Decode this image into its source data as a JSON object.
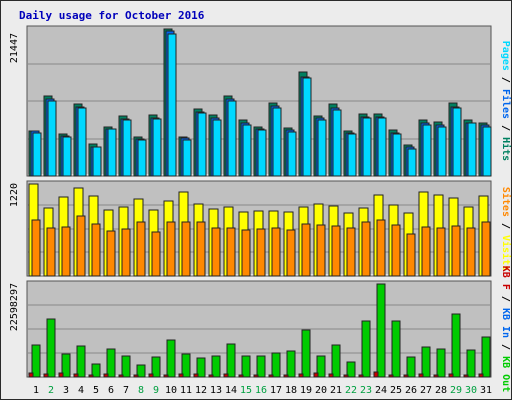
{
  "colors": {
    "background": "#ececec",
    "panel": "#c0c0c0",
    "pages": "#00d8ff",
    "files": "#0066ee",
    "hits": "#008060",
    "visits": "#ffff00",
    "sites": "#ff8800",
    "kb_f": "#c80000",
    "kb_in": "#0066ee",
    "kb_out": "#00cc00"
  },
  "chart_data": [
    {
      "type": "bar",
      "title": "Daily usage for October 2016",
      "panel": "hits",
      "ymax_label": "21447",
      "ylim": [
        0,
        21447
      ],
      "right_labels": [
        "Pages",
        "Files",
        "Hits"
      ],
      "grid": true,
      "categories": [
        "1",
        "2",
        "3",
        "4",
        "5",
        "6",
        "7",
        "8",
        "9",
        "10",
        "11",
        "12",
        "13",
        "14",
        "15",
        "16",
        "17",
        "18",
        "19",
        "20",
        "21",
        "22",
        "23",
        "24",
        "25",
        "26",
        "27",
        "28",
        "29",
        "30",
        "31"
      ],
      "weekend_days": [
        "2",
        "8",
        "9",
        "15",
        "16",
        "22",
        "23",
        "29",
        "30"
      ],
      "series": [
        {
          "name": "Hits",
          "values": [
            6600,
            11600,
            6200,
            10500,
            4600,
            7200,
            8700,
            5700,
            8900,
            21447,
            5700,
            9800,
            8900,
            11700,
            8100,
            7200,
            10600,
            7000,
            15200,
            8800,
            10500,
            6600,
            9000,
            9000,
            6700,
            4500,
            8100,
            7900,
            10600,
            8100,
            7700
          ]
        },
        {
          "name": "Files",
          "values": [
            6500,
            11300,
            5900,
            10100,
            4300,
            6900,
            8300,
            5400,
            8500,
            21100,
            5500,
            9400,
            8500,
            11200,
            7700,
            6800,
            10200,
            6700,
            14500,
            8400,
            9900,
            6300,
            8600,
            8600,
            6300,
            4200,
            7700,
            7400,
            10100,
            7800,
            7400
          ]
        },
        {
          "name": "Pages",
          "values": [
            6300,
            11000,
            5700,
            9900,
            4200,
            6800,
            8200,
            5200,
            8300,
            20700,
            5300,
            9200,
            8200,
            10900,
            7500,
            6700,
            9900,
            6400,
            14300,
            8200,
            9700,
            6100,
            8400,
            8400,
            6100,
            4000,
            7500,
            7200,
            9900,
            7700,
            7200
          ]
        }
      ]
    },
    {
      "type": "bar",
      "panel": "visits",
      "ymax_label": "1220",
      "ylim": [
        0,
        1220
      ],
      "right_labels": [
        "Sites",
        "Visits"
      ],
      "grid": true,
      "series": [
        {
          "name": "Visits",
          "values": [
            1220,
            900,
            1050,
            1170,
            1060,
            880,
            910,
            1020,
            880,
            1000,
            1110,
            960,
            890,
            920,
            850,
            860,
            860,
            850,
            910,
            950,
            930,
            840,
            900,
            1070,
            940,
            830,
            1110,
            1080,
            1040,
            920,
            1060
          ]
        },
        {
          "name": "Sites",
          "values": [
            740,
            630,
            650,
            790,
            690,
            600,
            620,
            720,
            590,
            710,
            710,
            720,
            630,
            630,
            610,
            620,
            630,
            610,
            690,
            680,
            660,
            640,
            720,
            740,
            670,
            560,
            650,
            640,
            660,
            640,
            710
          ]
        }
      ]
    },
    {
      "type": "bar",
      "panel": "kbytes",
      "ymax_label": "22598297",
      "ylim": [
        0,
        22598297
      ],
      "right_labels": [
        "KB F",
        "KB In",
        "KB Out"
      ],
      "grid": true,
      "series": [
        {
          "name": "KB Out",
          "values": [
            7700000,
            14000000,
            5500000,
            7600000,
            3200000,
            6800000,
            5100000,
            3000000,
            4800000,
            9100000,
            5600000,
            4700000,
            5200000,
            7900000,
            5200000,
            5200000,
            5800000,
            6200000,
            11500000,
            5200000,
            7800000,
            3700000,
            13500000,
            22598297,
            13500000,
            4900000,
            7400000,
            6800000,
            15200000,
            6600000,
            9600000
          ]
        },
        {
          "name": "KB F",
          "values": [
            900000,
            700000,
            900000,
            700000,
            500000,
            700000,
            600000,
            500000,
            700000,
            600000,
            700000,
            700000,
            500000,
            700000,
            500000,
            600000,
            600000,
            600000,
            800000,
            900000,
            700000,
            500000,
            500000,
            1300000,
            600000,
            600000,
            700000,
            500000,
            700000,
            600000,
            700000
          ]
        }
      ]
    }
  ]
}
